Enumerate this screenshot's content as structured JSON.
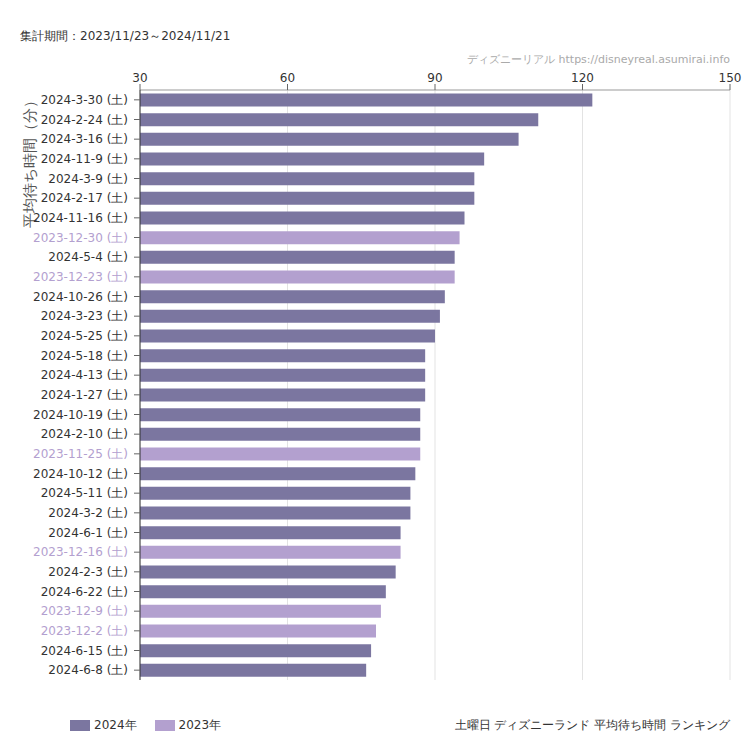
{
  "chart_data": {
    "type": "bar",
    "orientation": "horizontal",
    "stacked": true,
    "grid": true,
    "legend": "bottom-left",
    "title": "土曜日 ディズニーランド 平均待ち時間 ランキング",
    "subtitle": "集計期間：2023/11/23～2024/11/21",
    "source": "ディズニーリアル https://disneyreal.asumirai.info",
    "y_label": "平均待ち時間（分）",
    "categories": [
      "2024-3-30 (土)",
      "2024-2-24 (土)",
      "2024-3-16 (土)",
      "2024-11-9 (土)",
      "2024-3-9 (土)",
      "2024-2-17 (土)",
      "2024-11-16 (土)",
      "2023-12-30 (土)",
      "2024-5-4 (土)",
      "2023-12-23 (土)",
      "2024-10-26 (土)",
      "2024-3-23 (土)",
      "2024-5-25 (土)",
      "2024-5-18 (土)",
      "2024-4-13 (土)",
      "2024-1-27 (土)",
      "2024-10-19 (土)",
      "2024-2-10 (土)",
      "2023-11-25 (土)",
      "2024-10-12 (土)",
      "2024-5-11 (土)",
      "2024-3-2 (土)",
      "2024-6-1 (土)",
      "2023-12-16 (土)",
      "2024-2-3 (土)",
      "2024-6-22 (土)",
      "2023-12-9 (土)",
      "2023-12-2 (土)",
      "2024-6-15 (土)",
      "2024-6-8 (土)"
    ],
    "series": [
      {
        "name": "2024年",
        "color": "#7b76a0",
        "values": [
          122,
          111,
          107,
          100,
          98,
          98,
          96,
          null,
          94,
          null,
          92,
          91,
          90,
          88,
          88,
          88,
          87,
          87,
          null,
          86,
          85,
          85,
          83,
          null,
          82,
          80,
          null,
          null,
          77,
          76
        ]
      },
      {
        "name": "2023年",
        "color": "#b3a0cf",
        "values": [
          null,
          null,
          null,
          null,
          null,
          null,
          null,
          95,
          null,
          94,
          null,
          null,
          null,
          null,
          null,
          null,
          null,
          null,
          87,
          null,
          null,
          null,
          null,
          83,
          null,
          null,
          79,
          78,
          null,
          null
        ]
      }
    ],
    "xlim": [
      30,
      150
    ],
    "xticks": [
      30,
      60,
      90,
      120,
      150
    ]
  }
}
